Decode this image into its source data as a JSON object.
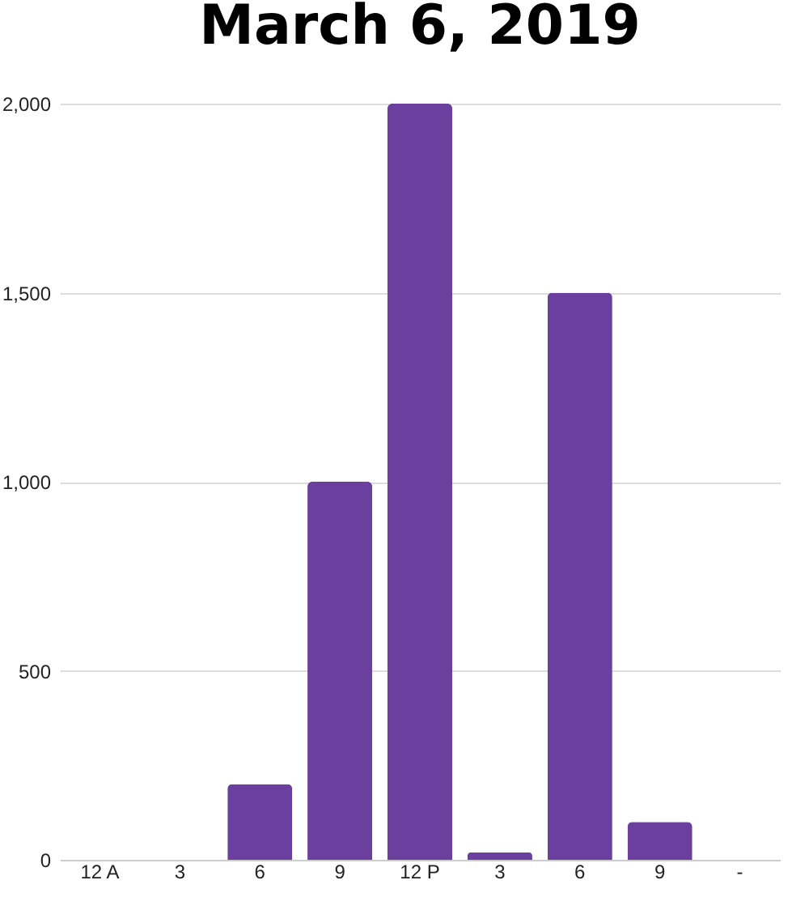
{
  "chart_data": {
    "type": "bar",
    "title": "March 6, 2019",
    "categories": [
      "12 A",
      "3",
      "6",
      "9",
      "12 P",
      "3",
      "6",
      "9",
      "-"
    ],
    "values": [
      0,
      0,
      200,
      1000,
      2000,
      20,
      1500,
      100,
      0
    ],
    "color": "#6b3f9e",
    "ylim": [
      0,
      2000
    ],
    "yticks": [
      0,
      {
        "value": 500,
        "label": "500"
      },
      {
        "value": 1000,
        "label": "1,000"
      },
      {
        "value": 1500,
        "label": "1,500"
      },
      {
        "value": 2000,
        "label": "2,000"
      }
    ],
    "grid": "y"
  }
}
